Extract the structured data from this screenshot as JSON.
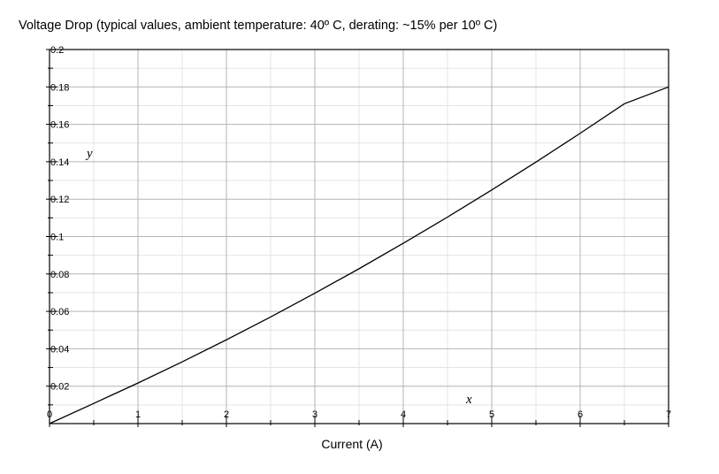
{
  "chart_data": {
    "type": "line",
    "title": "Voltage Drop (typical values, ambient temperature: 40º C, derating: ~15% per 10º C)",
    "xlabel": "Current (A)",
    "ylabel": "",
    "x_axis_var": "x",
    "y_axis_var": "y",
    "xlim": [
      0,
      7
    ],
    "ylim": [
      0,
      0.2
    ],
    "x_ticks": [
      "0",
      "1",
      "2",
      "3",
      "4",
      "5",
      "6",
      "7"
    ],
    "y_ticks": [
      "0.02",
      "0.04",
      "0.06",
      "0.08",
      "0.1",
      "0.12",
      "0.14",
      "0.16",
      "0.18",
      "0.2"
    ],
    "grid": true,
    "series": [
      {
        "x": [
          0,
          0.5,
          1,
          1.5,
          2,
          2.5,
          3,
          3.5,
          4,
          4.5,
          5,
          5.5,
          6,
          6.5,
          7
        ],
        "y": [
          0,
          0.0108,
          0.0217,
          0.033,
          0.0448,
          0.057,
          0.0697,
          0.0828,
          0.0964,
          0.1104,
          0.1249,
          0.1398,
          0.1552,
          0.171,
          0.18
        ]
      }
    ],
    "colors": {
      "line": "#000000",
      "major_grid": "#b4b4b4",
      "minor_grid": "#e4e4e4",
      "frame": "#000000"
    }
  }
}
